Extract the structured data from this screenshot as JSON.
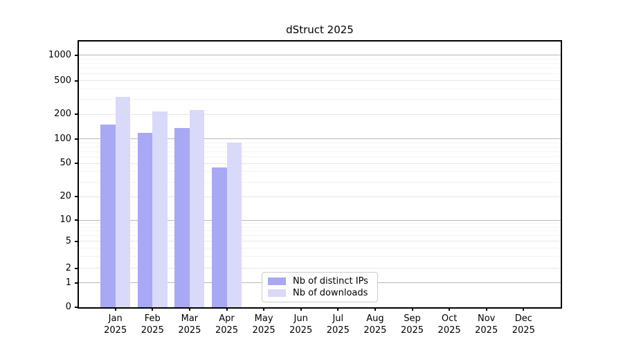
{
  "figure": {
    "background": "#ffffff"
  },
  "chart_data": {
    "type": "bar",
    "title": "dStruct 2025",
    "year": "2025",
    "categories": [
      "Jan",
      "Feb",
      "Mar",
      "Apr",
      "May",
      "Jun",
      "Jul",
      "Aug",
      "Sep",
      "Oct",
      "Nov",
      "Dec"
    ],
    "series": [
      {
        "name": "Nb of distinct IPs",
        "color": "#a8a8f5",
        "values": [
          150,
          120,
          135,
          45,
          0,
          0,
          0,
          0,
          0,
          0,
          0,
          0
        ]
      },
      {
        "name": "Nb of downloads",
        "color": "#d9d9f9",
        "values": [
          320,
          215,
          225,
          90,
          0,
          0,
          0,
          0,
          0,
          0,
          0,
          0
        ]
      }
    ],
    "xlabel": "",
    "ylabel": "",
    "yscale": "symlog",
    "y_ticks": [
      0,
      1,
      2,
      5,
      10,
      20,
      50,
      100,
      200,
      500,
      1000
    ],
    "ylim": [
      0,
      1400
    ],
    "grid": "horizontal",
    "legend_position": "inside-lower-center"
  },
  "colors": {
    "bar_distinct_ips": "#a8a8f5",
    "bar_downloads": "#d9d9f9",
    "major_grid": "#b8b8b8",
    "sub_grid": "#e6e6e6",
    "minor_grid": "#f3f3f3",
    "axis": "#000000"
  }
}
